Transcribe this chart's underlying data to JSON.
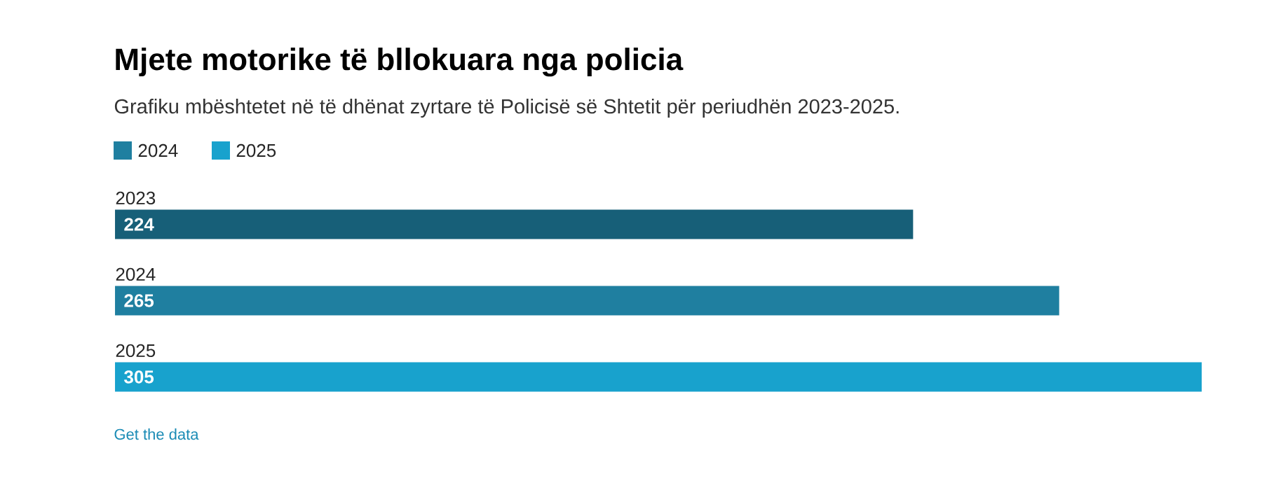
{
  "chart_data": {
    "type": "bar",
    "orientation": "horizontal",
    "title": "Mjete motorike të bllokuara nga policia",
    "subtitle": "Grafiku mbështetet në të dhënat zyrtare të Policisë së Shtetit për periudhën 2023-2025.",
    "categories": [
      "2023",
      "2024",
      "2025"
    ],
    "series": [
      {
        "color": "#175f78",
        "values": [
          224,
          null,
          null
        ]
      },
      {
        "name": "2024",
        "color": "#1f7fa0",
        "values": [
          null,
          265,
          null
        ]
      },
      {
        "name": "2025",
        "color": "#18a2cd",
        "values": [
          null,
          null,
          305
        ]
      }
    ],
    "data_labels": true,
    "legend": "top left",
    "annotations": [
      "Get the data"
    ]
  }
}
